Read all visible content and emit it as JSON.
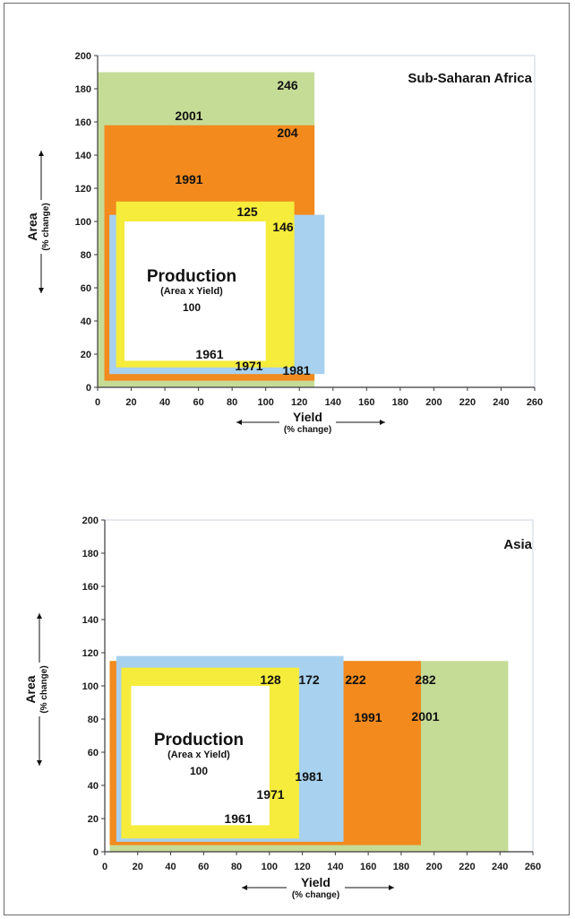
{
  "chart_data": [
    {
      "type": "nested-rectangle",
      "title": "Sub-Saharan Africa",
      "xlabel": "Yield",
      "xlabel_sub": "(% change)",
      "ylabel": "Area",
      "ylabel_sub": "(% change)",
      "xlim": [
        0,
        260
      ],
      "ylim": [
        0,
        200
      ],
      "xticks": [
        0,
        20,
        40,
        60,
        80,
        100,
        120,
        140,
        160,
        180,
        200,
        220,
        240,
        260
      ],
      "yticks": [
        0,
        20,
        40,
        60,
        80,
        100,
        120,
        140,
        160,
        180,
        200
      ],
      "base_label": "Production",
      "base_sublabel": "(Area x Yield)",
      "base_value": "100",
      "series": [
        {
          "name": "2001",
          "value": "246",
          "color": "#c5dc97",
          "yield_range": [
            0,
            129
          ],
          "area_range": [
            0,
            190
          ]
        },
        {
          "name": "1991",
          "value": "204",
          "color": "#f28a1e",
          "yield_range": [
            4,
            129
          ],
          "area_range": [
            4,
            158
          ]
        },
        {
          "name": "1981",
          "value": "146",
          "color": "#a7d1ee",
          "yield_range": [
            7,
            135
          ],
          "area_range": [
            8,
            104
          ]
        },
        {
          "name": "1971",
          "value": "125",
          "color": "#f5ec3c",
          "yield_range": [
            11,
            117
          ],
          "area_range": [
            12,
            112
          ]
        },
        {
          "name": "1961",
          "value": "",
          "color": "#ffffff",
          "yield_range": [
            16,
            100
          ],
          "area_range": [
            16,
            100
          ]
        }
      ]
    },
    {
      "type": "nested-rectangle",
      "title": "Asia",
      "xlabel": "Yield",
      "xlabel_sub": "(% change)",
      "ylabel": "Area",
      "ylabel_sub": "(% change)",
      "xlim": [
        0,
        260
      ],
      "ylim": [
        0,
        200
      ],
      "xticks": [
        0,
        20,
        40,
        60,
        80,
        100,
        120,
        140,
        160,
        180,
        200,
        220,
        240,
        260
      ],
      "yticks": [
        0,
        20,
        40,
        60,
        80,
        100,
        120,
        140,
        160,
        180,
        200
      ],
      "base_label": "Production",
      "base_sublabel": "(Area x Yield)",
      "base_value": "100",
      "series": [
        {
          "name": "2001",
          "value": "282",
          "color": "#c5dc97",
          "yield_range": [
            3,
            245
          ],
          "area_range": [
            0,
            115
          ]
        },
        {
          "name": "1991",
          "value": "222",
          "color": "#f28a1e",
          "yield_range": [
            3,
            192
          ],
          "area_range": [
            4,
            115
          ]
        },
        {
          "name": "1981",
          "value": "172",
          "color": "#a7d1ee",
          "yield_range": [
            7,
            145
          ],
          "area_range": [
            6,
            118
          ]
        },
        {
          "name": "1971",
          "value": "128",
          "color": "#f5ec3c",
          "yield_range": [
            10,
            118
          ],
          "area_range": [
            8,
            111
          ]
        },
        {
          "name": "1961",
          "value": "",
          "color": "#ffffff",
          "yield_range": [
            16,
            100
          ],
          "area_range": [
            16,
            100
          ]
        }
      ]
    }
  ]
}
